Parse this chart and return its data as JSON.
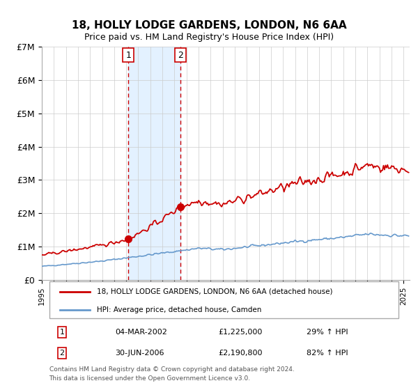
{
  "title": "18, HOLLY LODGE GARDENS, LONDON, N6 6AA",
  "subtitle": "Price paid vs. HM Land Registry's House Price Index (HPI)",
  "xlabel": "",
  "ylabel": "",
  "ylim": [
    0,
    7000000
  ],
  "yticks": [
    0,
    1000000,
    2000000,
    3000000,
    4000000,
    5000000,
    6000000,
    7000000
  ],
  "ytick_labels": [
    "£0",
    "£1M",
    "£2M",
    "£3M",
    "£4M",
    "£5M",
    "£6M",
    "£7M"
  ],
  "xlim_start": 1995.0,
  "xlim_end": 2025.5,
  "sale1_date": 2002.17,
  "sale1_price": 1225000,
  "sale1_label": "1",
  "sale1_text": "04-MAR-2002",
  "sale1_amount": "£1,225,000",
  "sale1_hpi": "29% ↑ HPI",
  "sale2_date": 2006.5,
  "sale2_price": 2190800,
  "sale2_label": "2",
  "sale2_text": "30-JUN-2006",
  "sale2_amount": "£2,190,800",
  "sale2_hpi": "82% ↑ HPI",
  "property_color": "#cc0000",
  "hpi_color": "#6699cc",
  "shade_color": "#ddeeff",
  "legend_property": "18, HOLLY LODGE GARDENS, LONDON, N6 6AA (detached house)",
  "legend_hpi": "HPI: Average price, detached house, Camden",
  "footer1": "Contains HM Land Registry data © Crown copyright and database right 2024.",
  "footer2": "This data is licensed under the Open Government Licence v3.0."
}
